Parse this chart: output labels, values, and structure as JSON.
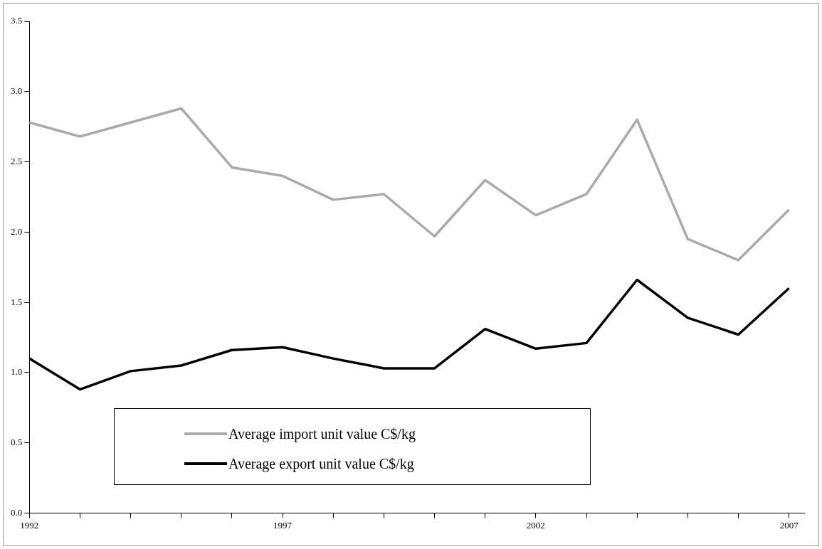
{
  "chart_data": {
    "type": "line",
    "x": [
      1992,
      1993,
      1994,
      1995,
      1996,
      1997,
      1998,
      1999,
      2000,
      2001,
      2002,
      2003,
      2004,
      2005,
      2006,
      2007
    ],
    "series": [
      {
        "name": "Average import unit value C$/kg",
        "color": "#aaaaaa",
        "values": [
          2.78,
          2.68,
          2.78,
          2.88,
          2.46,
          2.4,
          2.23,
          2.27,
          1.97,
          2.37,
          2.12,
          2.27,
          2.8,
          1.95,
          1.8,
          2.16
        ]
      },
      {
        "name": "Average export unit value C$/kg",
        "color": "#000000",
        "values": [
          1.1,
          0.88,
          1.01,
          1.05,
          1.16,
          1.18,
          1.1,
          1.03,
          1.03,
          1.31,
          1.17,
          1.21,
          1.66,
          1.39,
          1.27,
          1.6
        ]
      }
    ],
    "xlim": [
      1992,
      2007.3
    ],
    "xticks": [
      1992,
      {
        "value": 1993,
        "label": null
      },
      {
        "value": 1994,
        "label": null
      },
      {
        "value": 1995,
        "label": null
      },
      {
        "value": 1996,
        "label": null
      },
      1997,
      {
        "value": 1998,
        "label": null
      },
      {
        "value": 1999,
        "label": null
      },
      {
        "value": 2000,
        "label": null
      },
      {
        "value": 2001,
        "label": null
      },
      2002,
      {
        "value": 2003,
        "label": null
      },
      {
        "value": 2004,
        "label": null
      },
      {
        "value": 2005,
        "label": null
      },
      {
        "value": 2006,
        "label": null
      },
      2007
    ],
    "ylim": [
      0,
      3.5
    ],
    "yticks": [
      {
        "value": 0,
        "label": "0.0"
      },
      {
        "value": 0.5,
        "label": "0.5"
      },
      {
        "value": 1,
        "label": "1.0"
      },
      {
        "value": 1.5,
        "label": "1.5"
      },
      {
        "value": 2,
        "label": "2.0"
      },
      {
        "value": 2.5,
        "label": "2.5"
      },
      {
        "value": 3,
        "label": "3.0"
      },
      {
        "value": 3.5,
        "label": "3.5"
      }
    ],
    "grid": false,
    "legend": "bottom left",
    "marker": "none",
    "line_style": "solid"
  }
}
